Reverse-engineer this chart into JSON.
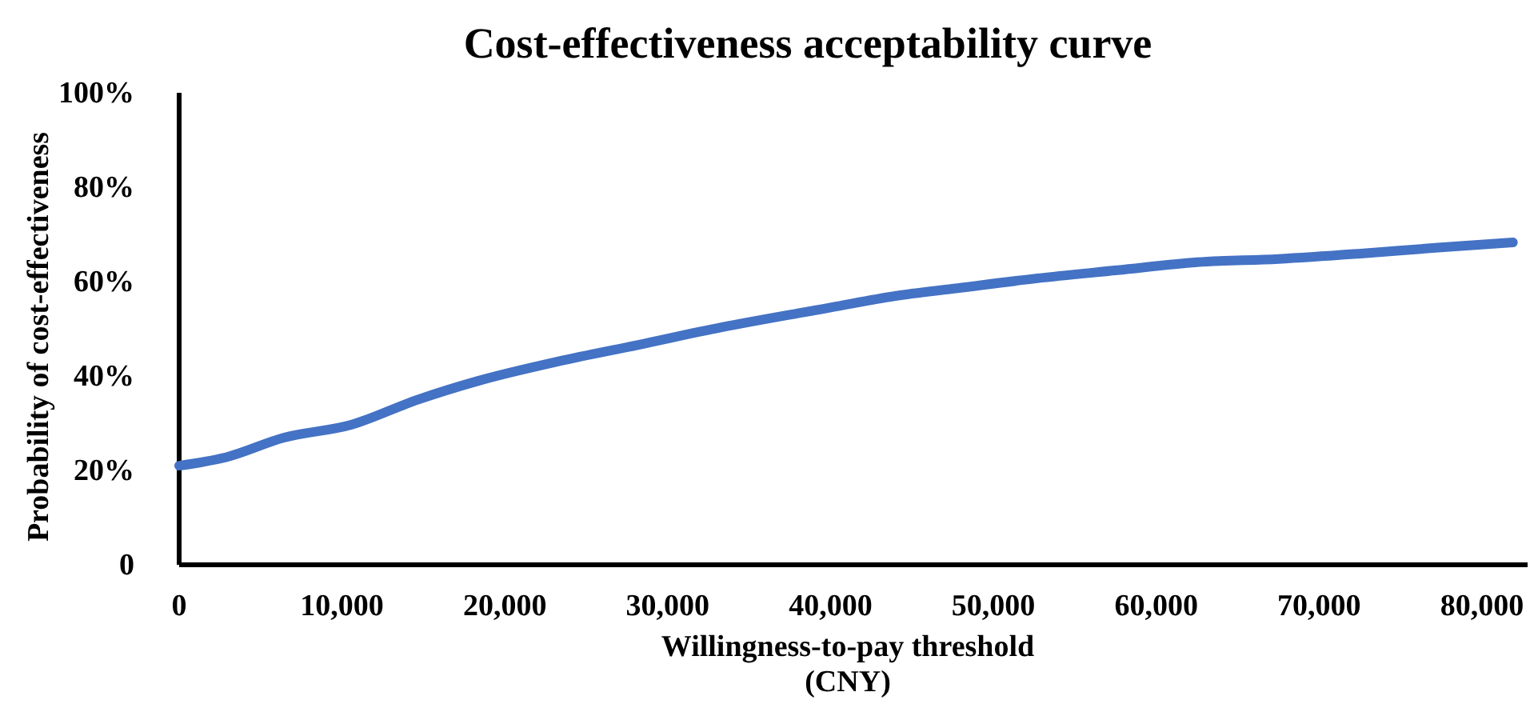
{
  "chart_data": {
    "type": "line",
    "title": "Cost-effectiveness acceptability curve",
    "xlabel": "Willingness-to-pay threshold\n(CNY)",
    "ylabel": "Probability of cost-effectiveness",
    "x": [
      0,
      2900,
      6400,
      10600,
      14500,
      18400,
      23300,
      28200,
      33300,
      38200,
      40000,
      43900,
      47800,
      52700,
      57600,
      62500,
      67500,
      72400,
      77300,
      81900
    ],
    "series": [
      {
        "color": "#4472c4",
        "values": [
          21,
          22.8,
          26.9,
          29.7,
          34.8,
          39,
          43.1,
          46.6,
          50.3,
          53.4,
          54.5,
          56.9,
          58.6,
          60.7,
          62.4,
          64.1,
          64.8,
          65.9,
          67.2,
          68.3
        ]
      }
    ],
    "xlim": [
      0,
      82800
    ],
    "xticks": [
      {
        "value": 0,
        "label": "0"
      },
      {
        "value": 10000,
        "label": "10,000"
      },
      {
        "value": 20000,
        "label": "20,000"
      },
      {
        "value": 30000,
        "label": "30,000"
      },
      {
        "value": 40000,
        "label": "40,000"
      },
      {
        "value": 50000,
        "label": "50,000"
      },
      {
        "value": 60000,
        "label": "60,000"
      },
      {
        "value": 70000,
        "label": "70,000"
      },
      {
        "value": 80000,
        "label": "80,000"
      }
    ],
    "ylim": [
      0,
      100
    ],
    "yticks": [
      {
        "value": 0,
        "label": "0"
      },
      {
        "value": 20,
        "label": "20%"
      },
      {
        "value": 40,
        "label": "40%"
      },
      {
        "value": 60,
        "label": "60%"
      },
      {
        "value": 80,
        "label": "80%"
      },
      {
        "value": 100,
        "label": "100%"
      }
    ],
    "grid": false,
    "marker": "none",
    "line_style": "solid"
  }
}
